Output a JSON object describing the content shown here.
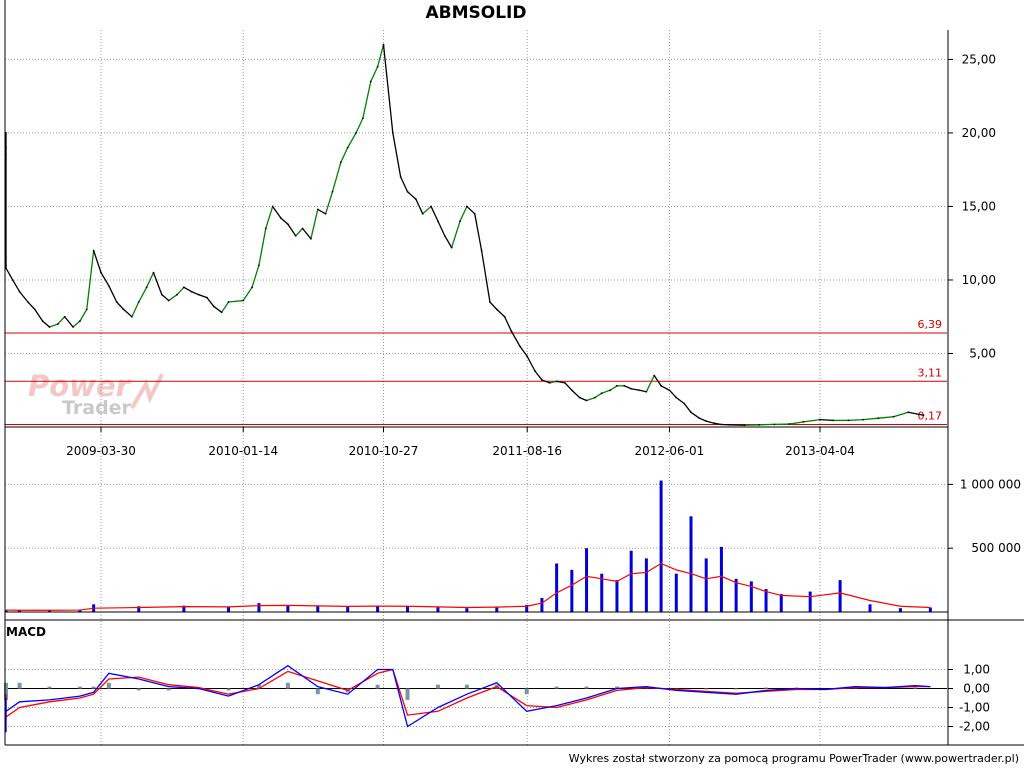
{
  "footer": {
    "credit": "Wykres został stworzony za pomocą programu PowerTrader (www.powertrader.pl)"
  },
  "watermark": {
    "line1": "Power",
    "line2": "Trader"
  },
  "colors": {
    "price_up": "#008000",
    "price_down": "#000000",
    "level_line": "#d40000",
    "volume": "#0000dd",
    "volume_ma": "#ff0000",
    "macd": "#0000ff",
    "signal": "#ff0000",
    "histogram": "#7a96a6",
    "grid": "#9a9a9a"
  },
  "chart_data": [
    {
      "type": "line",
      "panel": "price",
      "title": "ABMSOLID",
      "x_ticks": [
        "2009-03-30",
        "2010-01-14",
        "2010-10-27",
        "2011-08-16",
        "2012-06-01",
        "2013-04-04"
      ],
      "y_ticks": [
        "5,00",
        "10,00",
        "15,00",
        "20,00",
        "25,00"
      ],
      "ylim": [
        0,
        27
      ],
      "grid": true,
      "levels": [
        {
          "value": 6.39,
          "label": "6,39"
        },
        {
          "value": 3.11,
          "label": "3,11"
        },
        {
          "value": 0.17,
          "label": "0,17"
        }
      ],
      "x": [
        "2008-07-01",
        "2008-07-15",
        "2008-08-01",
        "2008-08-15",
        "2008-09-01",
        "2008-09-15",
        "2008-10-01",
        "2008-10-15",
        "2008-11-01",
        "2008-11-15",
        "2008-12-01",
        "2008-12-15",
        "2009-01-01",
        "2009-01-15",
        "2009-02-01",
        "2009-02-15",
        "2009-03-01",
        "2009-03-15",
        "2009-03-30",
        "2009-04-15",
        "2009-05-01",
        "2009-05-15",
        "2009-06-01",
        "2009-06-15",
        "2009-07-01",
        "2009-07-15",
        "2009-08-01",
        "2009-08-15",
        "2009-09-01",
        "2009-09-15",
        "2009-10-01",
        "2009-10-15",
        "2009-11-01",
        "2009-11-15",
        "2009-12-01",
        "2009-12-15",
        "2010-01-14",
        "2010-02-01",
        "2010-02-15",
        "2010-03-01",
        "2010-03-15",
        "2010-04-01",
        "2010-04-15",
        "2010-05-01",
        "2010-05-15",
        "2010-06-01",
        "2010-06-15",
        "2010-07-01",
        "2010-07-15",
        "2010-08-01",
        "2010-08-15",
        "2010-09-01",
        "2010-09-15",
        "2010-10-01",
        "2010-10-15",
        "2010-10-27",
        "2010-11-15",
        "2010-12-01",
        "2010-12-15",
        "2011-01-01",
        "2011-01-15",
        "2011-02-01",
        "2011-02-15",
        "2011-03-01",
        "2011-03-15",
        "2011-04-01",
        "2011-04-15",
        "2011-05-01",
        "2011-05-15",
        "2011-06-01",
        "2011-06-15",
        "2011-07-01",
        "2011-07-15",
        "2011-08-01",
        "2011-08-16",
        "2011-09-01",
        "2011-09-15",
        "2011-10-01",
        "2011-10-15",
        "2011-11-01",
        "2011-11-15",
        "2011-12-01",
        "2011-12-15",
        "2012-01-01",
        "2012-01-15",
        "2012-02-01",
        "2012-02-15",
        "2012-03-01",
        "2012-03-15",
        "2012-04-01",
        "2012-04-15",
        "2012-05-01",
        "2012-05-15",
        "2012-06-01",
        "2012-06-15",
        "2012-07-01",
        "2012-07-15",
        "2012-08-01",
        "2012-08-15",
        "2012-09-01",
        "2012-09-15",
        "2012-10-01",
        "2012-11-01",
        "2012-12-01",
        "2013-01-01",
        "2013-02-01",
        "2013-03-01",
        "2013-04-04",
        "2013-05-01",
        "2013-06-01",
        "2013-07-01",
        "2013-08-01",
        "2013-09-01",
        "2013-10-01",
        "2013-11-01"
      ],
      "y": [
        20.0,
        19.0,
        18.5,
        11.5,
        11.0,
        10.8,
        10.0,
        9.2,
        8.5,
        8.0,
        7.2,
        6.8,
        7.0,
        7.5,
        6.8,
        7.2,
        8.0,
        12.0,
        10.5,
        9.6,
        8.5,
        8.0,
        7.5,
        8.5,
        9.5,
        10.5,
        9.0,
        8.6,
        9.0,
        9.5,
        9.2,
        9.0,
        8.8,
        8.2,
        7.8,
        8.5,
        8.6,
        9.5,
        11.0,
        13.5,
        15.0,
        14.2,
        13.8,
        13.0,
        13.5,
        12.8,
        14.8,
        14.5,
        16.0,
        18.0,
        19.0,
        20.0,
        21.0,
        23.5,
        24.5,
        26.0,
        20.0,
        17.0,
        16.0,
        15.5,
        14.5,
        15.0,
        14.0,
        13.0,
        12.2,
        14.0,
        15.0,
        14.5,
        12.0,
        8.5,
        8.0,
        7.5,
        6.5,
        5.5,
        4.8,
        3.8,
        3.2,
        3.0,
        3.1,
        3.0,
        2.5,
        2.0,
        1.8,
        2.0,
        2.3,
        2.5,
        2.8,
        2.8,
        2.6,
        2.5,
        2.4,
        3.5,
        2.8,
        2.5,
        2.0,
        1.6,
        1.0,
        0.6,
        0.4,
        0.25,
        0.17,
        0.15,
        0.12,
        0.15,
        0.18,
        0.2,
        0.35,
        0.5,
        0.45,
        0.45,
        0.5,
        0.6,
        0.7,
        1.0,
        0.8
      ]
    },
    {
      "type": "bar",
      "panel": "volume",
      "y_ticks": [
        "500 000",
        "1 000 000"
      ],
      "ylim": [
        0,
        1050000
      ],
      "x": [
        "2008-08",
        "2008-10",
        "2008-12",
        "2009-02",
        "2009-03",
        "2009-06",
        "2009-09",
        "2009-12",
        "2010-02",
        "2010-04",
        "2010-06",
        "2010-08",
        "2010-10",
        "2010-12",
        "2011-02",
        "2011-04",
        "2011-06",
        "2011-08",
        "2011-09",
        "2011-10",
        "2011-11",
        "2011-12",
        "2012-01",
        "2012-02",
        "2012-03",
        "2012-04",
        "2012-05",
        "2012-06",
        "2012-07",
        "2012-08",
        "2012-09",
        "2012-10",
        "2012-11",
        "2012-12",
        "2013-01",
        "2013-03",
        "2013-05",
        "2013-07",
        "2013-09",
        "2013-11"
      ],
      "values": [
        15000,
        12000,
        14000,
        18000,
        60000,
        45000,
        50000,
        40000,
        70000,
        55000,
        45000,
        40000,
        50000,
        45000,
        35000,
        30000,
        40000,
        55000,
        110000,
        380000,
        330000,
        500000,
        300000,
        250000,
        480000,
        420000,
        1030000,
        300000,
        750000,
        420000,
        510000,
        260000,
        240000,
        180000,
        140000,
        160000,
        250000,
        60000,
        30000,
        35000
      ],
      "ma": [
        15000,
        14000,
        14000,
        15000,
        30000,
        35000,
        42000,
        40000,
        50000,
        52000,
        48000,
        44000,
        46000,
        45000,
        40000,
        35000,
        38000,
        45000,
        70000,
        150000,
        210000,
        280000,
        260000,
        240000,
        300000,
        310000,
        380000,
        330000,
        300000,
        260000,
        280000,
        230000,
        200000,
        160000,
        130000,
        120000,
        150000,
        90000,
        45000,
        35000
      ]
    },
    {
      "type": "line",
      "panel": "macd",
      "title": "MACD",
      "y_ticks": [
        "1,00",
        "0,00",
        "-1,00",
        "-2,00"
      ],
      "ylim": [
        -2.5,
        1.5
      ],
      "x": [
        "2008-07",
        "2008-08",
        "2008-09",
        "2008-10",
        "2008-12",
        "2009-02",
        "2009-03",
        "2009-04",
        "2009-06",
        "2009-08",
        "2009-10",
        "2009-12",
        "2010-02",
        "2010-04",
        "2010-06",
        "2010-08",
        "2010-10",
        "2010-11",
        "2010-12",
        "2011-02",
        "2011-04",
        "2011-06",
        "2011-08",
        "2011-10",
        "2011-12",
        "2012-02",
        "2012-04",
        "2012-06",
        "2012-08",
        "2012-10",
        "2012-12",
        "2013-02",
        "2013-04",
        "2013-06",
        "2013-08",
        "2013-10",
        "2013-11"
      ],
      "series": [
        {
          "key": "macd",
          "values": [
            -0.5,
            -2.3,
            -1.2,
            -0.7,
            -0.6,
            -0.4,
            -0.2,
            0.8,
            0.5,
            0.1,
            0.0,
            -0.4,
            0.2,
            1.2,
            0.1,
            -0.3,
            1.0,
            1.0,
            -2.0,
            -1.0,
            -0.3,
            0.3,
            -1.2,
            -0.9,
            -0.5,
            0.0,
            0.1,
            -0.1,
            -0.2,
            -0.3,
            -0.1,
            0.0,
            -0.05,
            0.1,
            0.05,
            0.15,
            0.1
          ]
        },
        {
          "key": "signal",
          "values": [
            -0.3,
            -1.6,
            -1.5,
            -1.0,
            -0.7,
            -0.5,
            -0.3,
            0.5,
            0.6,
            0.2,
            0.05,
            -0.3,
            0.0,
            0.9,
            0.4,
            -0.1,
            0.8,
            1.0,
            -1.4,
            -1.2,
            -0.5,
            0.1,
            -0.9,
            -1.0,
            -0.6,
            -0.1,
            0.05,
            -0.05,
            -0.15,
            -0.25,
            -0.15,
            -0.05,
            -0.05,
            0.05,
            0.05,
            0.1,
            0.1
          ]
        },
        {
          "key": "histogram",
          "values": [
            -0.2,
            -0.6,
            0.3,
            0.3,
            0.1,
            0.1,
            0.1,
            0.3,
            -0.1,
            -0.1,
            -0.05,
            -0.1,
            0.2,
            0.3,
            -0.3,
            -0.2,
            0.2,
            0.0,
            -0.6,
            0.2,
            0.2,
            0.2,
            -0.3,
            0.1,
            0.1,
            0.1,
            0.05,
            -0.05,
            -0.05,
            -0.05,
            0.05,
            0.05,
            0.0,
            0.05,
            0.0,
            0.05,
            0.0
          ]
        }
      ]
    }
  ]
}
